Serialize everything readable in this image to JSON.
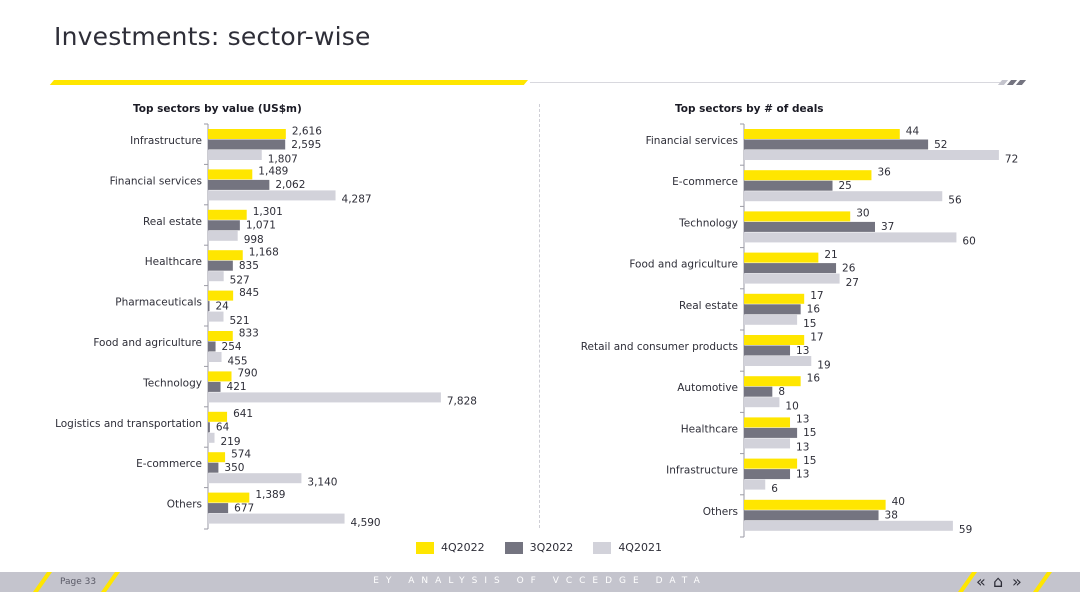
{
  "page": {
    "title": "Investments: sector-wise",
    "page_number": "Page 33",
    "footer_text": "EY ANALYSIS OF VCCEDGE DATA",
    "nav_prev": "«",
    "nav_home": "⌂",
    "nav_next": "»"
  },
  "colors": {
    "s4Q2022": "#ffe600",
    "s3Q2022": "#747480",
    "s4Q2021": "#d2d2da"
  },
  "legend": [
    "4Q2022",
    "3Q2022",
    "4Q2021"
  ],
  "chart_data": [
    {
      "type": "bar",
      "orientation": "horizontal",
      "title": "Top sectors by value (US$m)",
      "categories": [
        "Infrastructure",
        "Financial services",
        "Real estate",
        "Healthcare",
        "Pharmaceuticals",
        "Food and agriculture",
        "Technology",
        "Logistics and transportation",
        "E-commerce",
        "Others"
      ],
      "series": [
        {
          "name": "4Q2022",
          "values": [
            2616,
            1489,
            1301,
            1168,
            845,
            833,
            790,
            641,
            574,
            1389
          ],
          "labels": [
            "2,616",
            "1,489",
            "1,301",
            "1,168",
            "845",
            "833",
            "790",
            "641",
            "574",
            "1,389"
          ]
        },
        {
          "name": "3Q2022",
          "values": [
            2595,
            2062,
            1071,
            835,
            24,
            254,
            421,
            64,
            350,
            677
          ],
          "labels": [
            "2,595",
            "2,062",
            "1,071",
            "835",
            "24",
            "254",
            "421",
            "64",
            "350",
            "677"
          ]
        },
        {
          "name": "4Q2021",
          "values": [
            1807,
            4287,
            998,
            527,
            521,
            455,
            7828,
            219,
            3140,
            4590
          ],
          "labels": [
            "1,807",
            "4,287",
            "998",
            "527",
            "521",
            "455",
            "7,828",
            "219",
            "3,140",
            "4,590"
          ]
        }
      ],
      "xlim": [
        0,
        8000
      ]
    },
    {
      "type": "bar",
      "orientation": "horizontal",
      "title": "Top sectors by # of deals",
      "categories": [
        "Financial services",
        "E-commerce",
        "Technology",
        "Food and agriculture",
        "Real estate",
        "Retail and consumer products",
        "Automotive",
        "Healthcare",
        "Infrastructure",
        "Others"
      ],
      "series": [
        {
          "name": "4Q2022",
          "values": [
            44,
            36,
            30,
            21,
            17,
            17,
            16,
            13,
            15,
            40
          ],
          "labels": [
            "44",
            "36",
            "30",
            "21",
            "17",
            "17",
            "16",
            "13",
            "15",
            "40"
          ]
        },
        {
          "name": "3Q2022",
          "values": [
            52,
            25,
            37,
            26,
            16,
            13,
            8,
            15,
            13,
            38
          ],
          "labels": [
            "52",
            "25",
            "37",
            "26",
            "16",
            "13",
            "8",
            "15",
            "13",
            "38"
          ]
        },
        {
          "name": "4Q2021",
          "values": [
            72,
            56,
            60,
            27,
            15,
            19,
            10,
            13,
            6,
            59
          ],
          "labels": [
            "72",
            "56",
            "60",
            "27",
            "15",
            "19",
            "10",
            "13",
            "6",
            "59"
          ]
        }
      ],
      "xlim": [
        0,
        74
      ]
    }
  ]
}
